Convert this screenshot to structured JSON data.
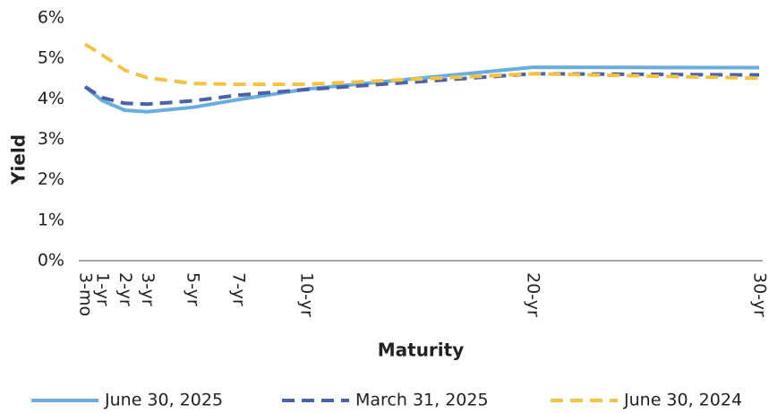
{
  "chart_data": {
    "type": "line",
    "x": [
      0.25,
      1,
      2,
      3,
      5,
      7,
      10,
      20,
      30
    ],
    "xlim": [
      0.25,
      30
    ],
    "xticks": [
      {
        "value": 0.25,
        "label": "3-mo"
      },
      {
        "value": 1,
        "label": "1-yr"
      },
      {
        "value": 2,
        "label": "2-yr"
      },
      {
        "value": 3,
        "label": "3-yr"
      },
      {
        "value": 5,
        "label": "5-yr"
      },
      {
        "value": 7,
        "label": "7-yr"
      },
      {
        "value": 10,
        "label": "10-yr"
      },
      {
        "value": 20,
        "label": "20-yr"
      },
      {
        "value": 30,
        "label": "30-yr"
      }
    ],
    "ylim": [
      0,
      6
    ],
    "yticks": [
      {
        "value": 0,
        "label": "0%"
      },
      {
        "value": 1,
        "label": "1%"
      },
      {
        "value": 2,
        "label": "2%"
      },
      {
        "value": 3,
        "label": "3%"
      },
      {
        "value": 4,
        "label": "4%"
      },
      {
        "value": 5,
        "label": "5%"
      },
      {
        "value": 6,
        "label": "6%"
      }
    ],
    "x_label": "Maturity",
    "y_label": "Yield",
    "legend": "bottom",
    "series": [
      {
        "name": "June 30, 2025",
        "color": "#6aaee0",
        "dash": "solid",
        "values": [
          4.3,
          3.96,
          3.72,
          3.68,
          3.79,
          3.98,
          4.24,
          4.78,
          4.77
        ]
      },
      {
        "name": "March 31, 2025",
        "color": "#4a62a8",
        "dash": "dashed",
        "values": [
          4.3,
          4.03,
          3.89,
          3.87,
          3.95,
          4.09,
          4.23,
          4.62,
          4.59
        ]
      },
      {
        "name": "June 30, 2024",
        "color": "#f5c342",
        "dash": "dashed",
        "values": [
          5.35,
          5.09,
          4.71,
          4.52,
          4.38,
          4.36,
          4.36,
          4.62,
          4.51
        ]
      }
    ]
  }
}
